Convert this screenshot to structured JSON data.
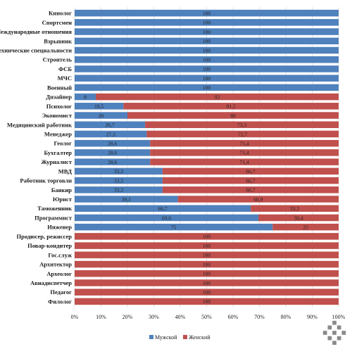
{
  "chart_data": {
    "type": "bar",
    "orientation": "horizontal",
    "stacked": true,
    "percent": true,
    "categories": [
      "Кинолог",
      "Спортсмен",
      "Международные отношения",
      "Взрывник",
      "Технические специальности",
      "Строитель",
      "ФСБ",
      "МЧС",
      "Военный",
      "Дизайнер",
      "Психолог",
      "Экономист",
      "Медицинский работник",
      "Менеджер",
      "Геолог",
      "Бухгалтер",
      "Журналист",
      "МВД",
      "Работник торговли",
      "Банкир",
      "Юрист",
      "Таможенник",
      "Программист",
      "Инженер",
      "Продюсер, режиссер",
      "Повар-кондитер",
      "Гос.служ",
      "Архитектор",
      "Археолог",
      "Авиадиспетчер",
      "Педагог",
      "Филолог"
    ],
    "series": [
      {
        "name": "Мужской",
        "color": "#4f81bd",
        "values": [
          100,
          100,
          100,
          100,
          100,
          100,
          100,
          100,
          100,
          8,
          18.5,
          20,
          26.7,
          27.3,
          28.6,
          28.6,
          28.6,
          33.3,
          33.3,
          33.3,
          39.1,
          66.7,
          69.6,
          75,
          0,
          0,
          0,
          0,
          0,
          0,
          0,
          0
        ],
        "labels": [
          "100",
          "100",
          "100",
          "100",
          "100",
          "100",
          "100",
          "100",
          "100",
          "8",
          "18,5",
          "20",
          "26,7",
          "27,3",
          "28,6",
          "28,6",
          "28,6",
          "33,3",
          "33,3",
          "33,3",
          "39,1",
          "66,7",
          "69,6",
          "75",
          "",
          "",
          "",
          "",
          "",
          "",
          "",
          ""
        ]
      },
      {
        "name": "Женский",
        "color": "#c0504d",
        "values": [
          0,
          0,
          0,
          0,
          0,
          0,
          0,
          0,
          0,
          92,
          81.5,
          80,
          73.3,
          72.7,
          71.4,
          71.4,
          71.4,
          66.7,
          66.7,
          66.7,
          60.9,
          33.3,
          30.4,
          25,
          100,
          100,
          100,
          100,
          100,
          100,
          100,
          100
        ],
        "labels": [
          "",
          "",
          "",
          "",
          "",
          "",
          "",
          "",
          "",
          "92",
          "81,5",
          "80",
          "73,3",
          "72,7",
          "71,4",
          "71,4",
          "71,4",
          "66,7",
          "66,7",
          "66,7",
          "60,9",
          "33,3",
          "30,4",
          "25",
          "100",
          "100",
          "100",
          "100",
          "100",
          "100",
          "100",
          "100"
        ]
      }
    ],
    "xlim": [
      0,
      100
    ],
    "x_ticks": [
      "0%",
      "10%",
      "20%",
      "30%",
      "40%",
      "50%",
      "60%",
      "70%",
      "80%",
      "90%",
      "100%"
    ],
    "grid": true,
    "legend_position": "bottom",
    "title": "",
    "xlabel": "",
    "ylabel": ""
  }
}
